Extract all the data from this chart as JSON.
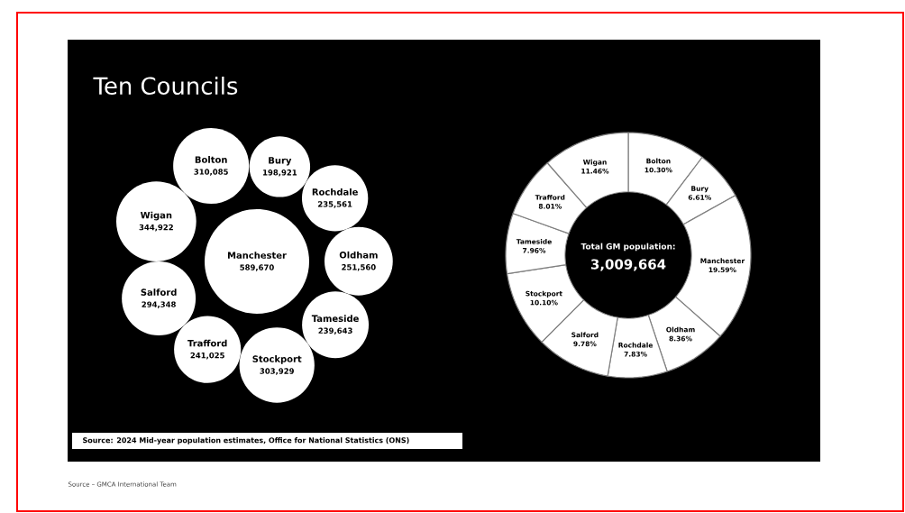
{
  "chart_data": [
    {
      "type": "other",
      "title": "Ten Councils",
      "color": "#ffffff",
      "categories": [
        "Wigan",
        "Bolton",
        "Bury",
        "Rochdale",
        "Manchester",
        "Oldham",
        "Tameside",
        "Stockport",
        "Trafford",
        "Salford"
      ],
      "values": [
        344922,
        310085,
        198921,
        235561,
        589670,
        251560,
        239643,
        303929,
        241025,
        294348
      ],
      "value_labels": [
        "344,922",
        "310,085",
        "198,921",
        "235,561",
        "589,670",
        "251,560",
        "239,643",
        "303,929",
        "241,025",
        "294,348"
      ],
      "annotations": [
        "Source: 2024 Mid-year population estimates, Office for National Statistics (ONS)",
        "Source – GMCA International Team"
      ]
    },
    {
      "type": "donut",
      "categories": [
        "Bolton",
        "Bury",
        "Manchester",
        "Oldham",
        "Rochdale",
        "Salford",
        "Stockport",
        "Tameside",
        "Trafford",
        "Wigan"
      ],
      "values": [
        10.3,
        6.61,
        19.59,
        8.36,
        7.83,
        9.78,
        10.1,
        7.96,
        8.01,
        11.46
      ],
      "value_labels": [
        "10.30%",
        "6.61%",
        "19.59%",
        "8.36%",
        "7.83%",
        "9.78%",
        "10.10%",
        "7.96%",
        "8.01%",
        "11.46%"
      ],
      "colors": [
        "#ffffff",
        "#ffffff",
        "#ffffff",
        "#ffffff",
        "#ffffff",
        "#ffffff",
        "#ffffff",
        "#ffffff",
        "#ffffff",
        "#ffffff"
      ],
      "annotations": [
        "Total GM population:",
        "3,009,664"
      ]
    }
  ]
}
